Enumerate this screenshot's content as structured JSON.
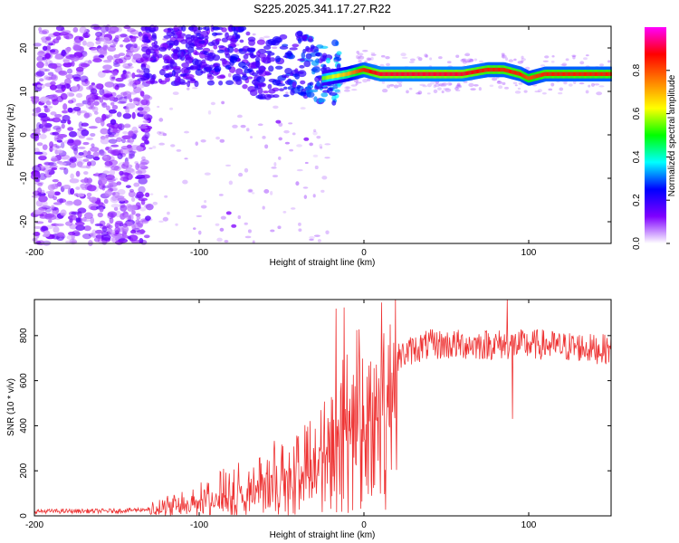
{
  "title": "S225.2025.341.17.27.R22",
  "chart_data": [
    {
      "type": "heatmap",
      "name": "spectrogram",
      "xlabel": "Height of straight line (km)",
      "ylabel": "Frequency (Hz)",
      "xlim": [
        -200,
        150
      ],
      "ylim": [
        -25,
        25
      ],
      "xticks": [
        -200,
        -100,
        0,
        100
      ],
      "yticks": [
        20,
        10,
        0,
        -10,
        -20
      ],
      "colorbar": {
        "label": "Normalized spectral amplitude",
        "range": [
          0.0,
          1.0
        ],
        "ticks": [
          0.0,
          0.2,
          0.4,
          0.6,
          0.8
        ],
        "colors": [
          "#ffffff",
          "#7f00ff",
          "#0000ff",
          "#00ffff",
          "#00ff00",
          "#ffff00",
          "#ff8000",
          "#ff0000",
          "#ff00ff"
        ]
      },
      "signal_track": {
        "x": [
          -130,
          -100,
          -75,
          -60,
          -40,
          -25,
          -10,
          0,
          10,
          30,
          60,
          75,
          80,
          85,
          95,
          100,
          110,
          130,
          150
        ],
        "freq": [
          18,
          18,
          18,
          14,
          16,
          13,
          14,
          15,
          14,
          14,
          14,
          15,
          15,
          15,
          14,
          13,
          14,
          14,
          14
        ],
        "amp": [
          0.25,
          0.3,
          0.35,
          0.3,
          0.45,
          0.55,
          0.7,
          0.85,
          0.9,
          0.9,
          0.9,
          0.85,
          0.85,
          0.85,
          0.85,
          0.8,
          0.85,
          0.85,
          0.85
        ]
      }
    },
    {
      "type": "line",
      "name": "snr",
      "xlabel": "Height of straight line (km)",
      "ylabel": "SNR (10 * v/v)",
      "xlim": [
        -200,
        150
      ],
      "ylim": [
        0,
        960
      ],
      "xticks": [
        -200,
        -100,
        0,
        100
      ],
      "yticks": [
        0,
        200,
        400,
        600,
        800
      ],
      "color": "#ee3333",
      "envelope": {
        "x": [
          -200,
          -150,
          -130,
          -110,
          -90,
          -70,
          -50,
          -35,
          -25,
          -15,
          -10,
          -5,
          0,
          5,
          10,
          15,
          20,
          25,
          30,
          40,
          50,
          60,
          70,
          80,
          90,
          100,
          110,
          120,
          130,
          140,
          150
        ],
        "y": [
          20,
          22,
          30,
          60,
          110,
          160,
          220,
          260,
          320,
          420,
          500,
          600,
          480,
          560,
          600,
          660,
          700,
          720,
          740,
          760,
          760,
          760,
          760,
          760,
          760,
          760,
          760,
          750,
          750,
          740,
          740
        ]
      },
      "spikes": [
        {
          "x": -17,
          "y": 920
        },
        {
          "x": -12,
          "y": 925
        },
        {
          "x": 12,
          "y": 810
        },
        {
          "x": 87,
          "y": 960
        },
        {
          "x": 90,
          "y": 430
        }
      ]
    }
  ]
}
